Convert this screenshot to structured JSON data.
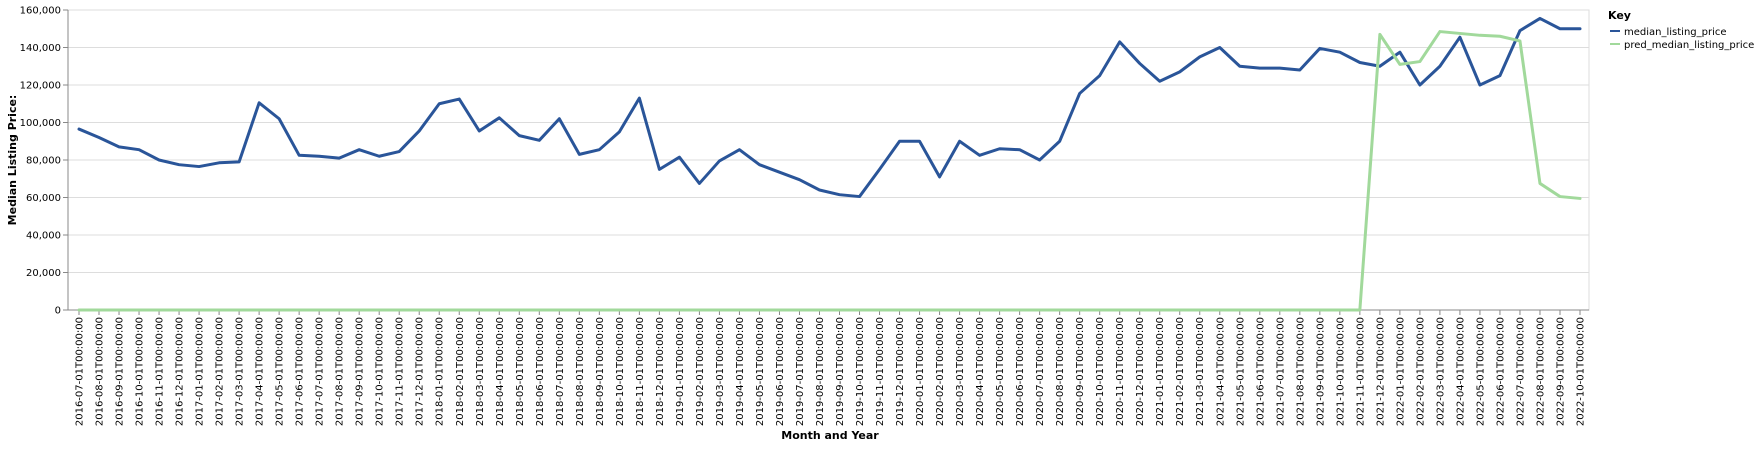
{
  "chart_data": {
    "type": "line",
    "xlabel": "Month and Year",
    "ylabel": "Median Listing Price:",
    "ylim": [
      0,
      160000
    ],
    "yticks": [
      0,
      20000,
      40000,
      60000,
      80000,
      100000,
      120000,
      140000,
      160000
    ],
    "grid": "horizontal",
    "legend": {
      "title": "Key",
      "position": "top-right"
    },
    "x": [
      "2016-07-01T00:00:00",
      "2016-08-01T00:00:00",
      "2016-09-01T00:00:00",
      "2016-10-01T00:00:00",
      "2016-11-01T00:00:00",
      "2016-12-01T00:00:00",
      "2017-01-01T00:00:00",
      "2017-02-01T00:00:00",
      "2017-03-01T00:00:00",
      "2017-04-01T00:00:00",
      "2017-05-01T00:00:00",
      "2017-06-01T00:00:00",
      "2017-07-01T00:00:00",
      "2017-08-01T00:00:00",
      "2017-09-01T00:00:00",
      "2017-10-01T00:00:00",
      "2017-11-01T00:00:00",
      "2017-12-01T00:00:00",
      "2018-01-01T00:00:00",
      "2018-02-01T00:00:00",
      "2018-03-01T00:00:00",
      "2018-04-01T00:00:00",
      "2018-05-01T00:00:00",
      "2018-06-01T00:00:00",
      "2018-07-01T00:00:00",
      "2018-08-01T00:00:00",
      "2018-09-01T00:00:00",
      "2018-10-01T00:00:00",
      "2018-11-01T00:00:00",
      "2018-12-01T00:00:00",
      "2019-01-01T00:00:00",
      "2019-02-01T00:00:00",
      "2019-03-01T00:00:00",
      "2019-04-01T00:00:00",
      "2019-05-01T00:00:00",
      "2019-06-01T00:00:00",
      "2019-07-01T00:00:00",
      "2019-08-01T00:00:00",
      "2019-09-01T00:00:00",
      "2019-10-01T00:00:00",
      "2019-11-01T00:00:00",
      "2019-12-01T00:00:00",
      "2020-01-01T00:00:00",
      "2020-02-01T00:00:00",
      "2020-03-01T00:00:00",
      "2020-04-01T00:00:00",
      "2020-05-01T00:00:00",
      "2020-06-01T00:00:00",
      "2020-07-01T00:00:00",
      "2020-08-01T00:00:00",
      "2020-09-01T00:00:00",
      "2020-10-01T00:00:00",
      "2020-11-01T00:00:00",
      "2020-12-01T00:00:00",
      "2021-01-01T00:00:00",
      "2021-02-01T00:00:00",
      "2021-03-01T00:00:00",
      "2021-04-01T00:00:00",
      "2021-05-01T00:00:00",
      "2021-06-01T00:00:00",
      "2021-07-01T00:00:00",
      "2021-08-01T00:00:00",
      "2021-09-01T00:00:00",
      "2021-10-01T00:00:00",
      "2021-11-01T00:00:00",
      "2021-12-01T00:00:00",
      "2022-01-01T00:00:00",
      "2022-02-01T00:00:00",
      "2022-03-01T00:00:00",
      "2022-04-01T00:00:00",
      "2022-05-01T00:00:00",
      "2022-06-01T00:00:00",
      "2022-07-01T00:00:00",
      "2022-08-01T00:00:00",
      "2022-09-01T00:00:00",
      "2022-10-01T00:00:00"
    ],
    "series": [
      {
        "name": "median_listing_price",
        "color": "#2a5599",
        "values": [
          96500,
          92000,
          87000,
          85500,
          80000,
          77500,
          76500,
          78500,
          79000,
          110500,
          102000,
          82500,
          82000,
          81000,
          85500,
          82000,
          84500,
          95500,
          110000,
          112500,
          95500,
          102500,
          93000,
          90500,
          102000,
          83000,
          85500,
          95000,
          113000,
          75000,
          81500,
          67500,
          79500,
          85500,
          77500,
          73500,
          69500,
          64000,
          61500,
          60500,
          75000,
          90000,
          90000,
          71000,
          90000,
          82500,
          86000,
          85500,
          80000,
          90000,
          115500,
          125000,
          143000,
          131500,
          122000,
          127000,
          135000,
          140000,
          130000,
          129000,
          129000,
          128000,
          139500,
          137500,
          132000,
          130000,
          137500,
          120000,
          130000,
          145500,
          120000,
          125000,
          149000,
          155500,
          150000,
          150000
        ]
      },
      {
        "name": "pred_median_listing_price",
        "color": "#a1d99b",
        "values": [
          0,
          0,
          0,
          0,
          0,
          0,
          0,
          0,
          0,
          0,
          0,
          0,
          0,
          0,
          0,
          0,
          0,
          0,
          0,
          0,
          0,
          0,
          0,
          0,
          0,
          0,
          0,
          0,
          0,
          0,
          0,
          0,
          0,
          0,
          0,
          0,
          0,
          0,
          0,
          0,
          0,
          0,
          0,
          0,
          0,
          0,
          0,
          0,
          0,
          0,
          0,
          0,
          0,
          0,
          0,
          0,
          0,
          0,
          0,
          0,
          0,
          0,
          0,
          0,
          0,
          147000,
          131000,
          132500,
          148500,
          147500,
          146500,
          146000,
          143500,
          67500,
          60500,
          59500
        ]
      }
    ]
  }
}
